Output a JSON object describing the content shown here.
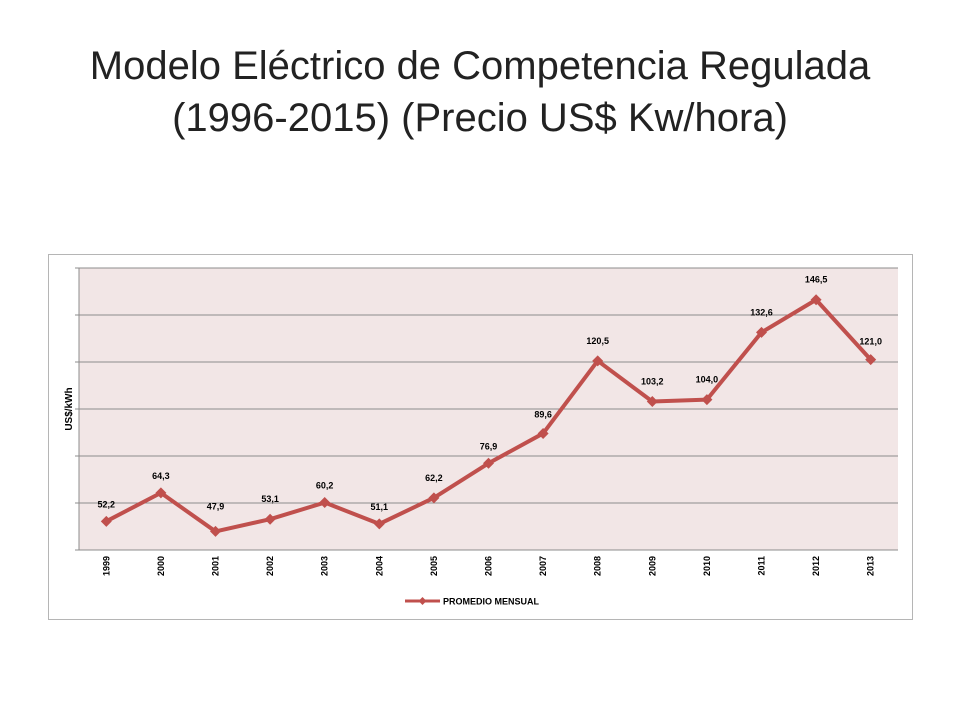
{
  "slide": {
    "title_line1": "Modelo Eléctrico de Competencia Regulada",
    "title_line2": "(1996-2015) (Precio US$ Kw/hora)"
  },
  "chart_data": {
    "type": "line",
    "title": "",
    "xlabel": "",
    "ylabel": "US$/kWh",
    "categories": [
      "1999",
      "2000",
      "2001",
      "2002",
      "2003",
      "2004",
      "2005",
      "2006",
      "2007",
      "2008",
      "2009",
      "2010",
      "2011",
      "2012",
      "2013"
    ],
    "series": [
      {
        "name": "PROMEDIO MENSUAL",
        "values": [
          52.2,
          64.3,
          47.9,
          53.1,
          60.2,
          51.1,
          62.2,
          76.9,
          89.6,
          120.5,
          103.2,
          104.0,
          132.6,
          146.5,
          121.0
        ],
        "labels": [
          "52,2",
          "64,3",
          "47,9",
          "53,1",
          "60,2",
          "51,1",
          "62,2",
          "76,9",
          "89,6",
          "120,5",
          "103,2",
          "104,0",
          "132,6",
          "146,5",
          "121,0"
        ]
      }
    ],
    "ylim": [
      40,
      160
    ],
    "y_gridlines": 6,
    "y_tick_labels_shown": false,
    "grid": true,
    "legend": "bottom",
    "colors": {
      "line": "#c0504d",
      "plot_background": "#f2e6e6",
      "gridline": "#8c8c8c"
    }
  }
}
